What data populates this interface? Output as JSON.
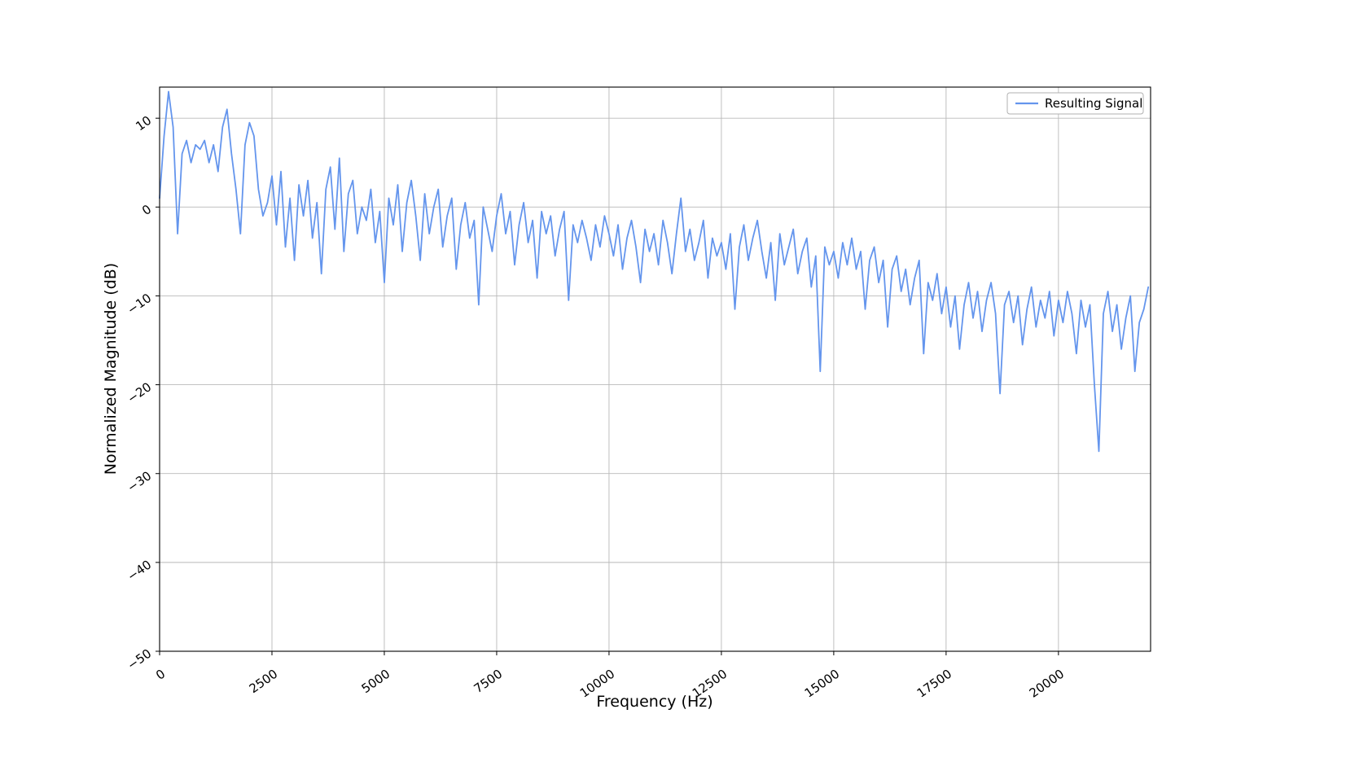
{
  "figure": {
    "background_color": "#ffffff",
    "line_color": "#6495ED",
    "grid_color": "#b9b9b9",
    "spine_color": "#000000",
    "legend_border_color": "#b0b0b0"
  },
  "chart_data": {
    "type": "line",
    "title": "",
    "xlabel": "Frequency (Hz)",
    "ylabel": "Normalized Magnitude (dB)",
    "xlim": [
      0,
      22050
    ],
    "ylim": [
      -50,
      13.5
    ],
    "xticks": [
      0,
      2500,
      5000,
      7500,
      10000,
      12500,
      15000,
      17500,
      20000
    ],
    "yticks": [
      10,
      0,
      -10,
      -20,
      -30,
      -40,
      -50
    ],
    "grid": true,
    "tick_rotation_deg": 35,
    "legend": {
      "position": "upper right",
      "entries": [
        {
          "label": "Resulting Signal",
          "color": "#6495ED"
        }
      ]
    },
    "series": [
      {
        "name": "Resulting Signal",
        "color": "#6495ED",
        "x_start": 0,
        "x_step": 100,
        "values": [
          1,
          8,
          13,
          9,
          -3,
          6,
          7.5,
          5,
          7,
          6.5,
          7.5,
          5,
          7,
          4,
          9,
          11,
          6,
          2,
          -3,
          7,
          9.5,
          8,
          2,
          -1,
          0.5,
          3.5,
          -2,
          4,
          -4.5,
          1,
          -6,
          2.5,
          -1,
          3,
          -3.5,
          0.5,
          -7.5,
          2,
          4.5,
          -2.5,
          5.5,
          -5,
          1.5,
          3,
          -3,
          0,
          -1.5,
          2,
          -4,
          -0.5,
          -8.5,
          1,
          -2,
          2.5,
          -5,
          0.5,
          3,
          -1,
          -6,
          1.5,
          -3,
          0,
          2,
          -4.5,
          -1,
          1,
          -7,
          -2,
          0.5,
          -3.5,
          -1.5,
          -11,
          0,
          -2.5,
          -5,
          -1,
          1.5,
          -3,
          -0.5,
          -6.5,
          -2,
          0.5,
          -4,
          -1.5,
          -8,
          -0.5,
          -3,
          -1,
          -5.5,
          -2.5,
          -0.5,
          -10.5,
          -2,
          -4,
          -1.5,
          -3.5,
          -6,
          -2,
          -4.5,
          -1,
          -3,
          -5.5,
          -2,
          -7,
          -3.5,
          -1.5,
          -4.5,
          -8.5,
          -2.5,
          -5,
          -3,
          -6.5,
          -1.5,
          -4,
          -7.5,
          -3,
          1,
          -5,
          -2.5,
          -6,
          -4,
          -1.5,
          -8,
          -3.5,
          -5.5,
          -4,
          -7,
          -3,
          -11.5,
          -4.5,
          -2,
          -6,
          -3.5,
          -1.5,
          -5,
          -8,
          -4,
          -10.5,
          -3,
          -6.5,
          -4.5,
          -2.5,
          -7.5,
          -5,
          -3.5,
          -9,
          -5.5,
          -18.5,
          -4.5,
          -6.5,
          -5,
          -8,
          -4,
          -6.5,
          -3.5,
          -7,
          -5,
          -11.5,
          -6,
          -4.5,
          -8.5,
          -6,
          -13.5,
          -7,
          -5.5,
          -9.5,
          -7,
          -11,
          -8,
          -6,
          -16.5,
          -8.5,
          -10.5,
          -7.5,
          -12,
          -9,
          -13.5,
          -10,
          -16,
          -11,
          -8.5,
          -12.5,
          -9.5,
          -14,
          -10.5,
          -8.5,
          -12,
          -21,
          -11,
          -9.5,
          -13,
          -10,
          -15.5,
          -11.5,
          -9,
          -13.5,
          -10.5,
          -12.5,
          -9.5,
          -14.5,
          -10.5,
          -13,
          -9.5,
          -12,
          -16.5,
          -10.5,
          -13.5,
          -11,
          -20,
          -27.5,
          -12,
          -9.5,
          -14,
          -11,
          -16,
          -12.5,
          -10,
          -18.5,
          -13,
          -11.5,
          -9
        ]
      }
    ]
  }
}
